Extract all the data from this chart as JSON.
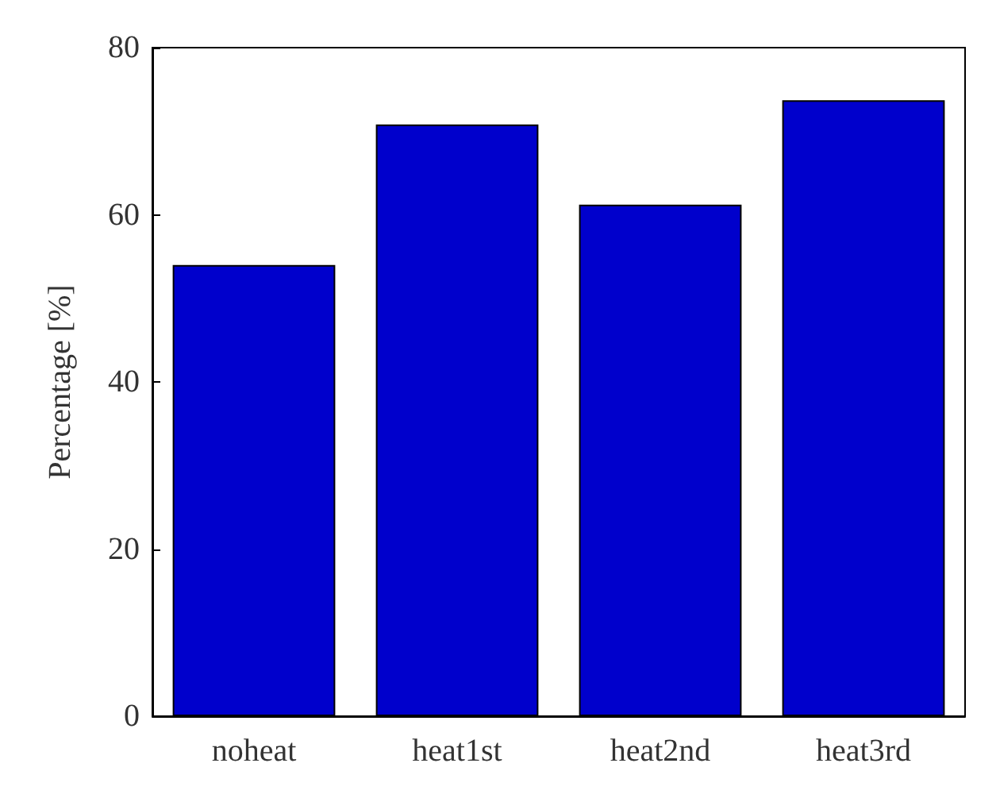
{
  "chart_data": {
    "type": "bar",
    "ylabel": "Percentage [%]",
    "categories": [
      "noheat",
      "heat1st",
      "heat2nd",
      "heat3rd"
    ],
    "values": [
      54,
      70.8,
      61.2,
      73.7
    ],
    "color": "#0000cc",
    "ylim": [
      0,
      80
    ],
    "yticks": [
      0,
      20,
      40,
      60,
      80
    ],
    "grid": false
  }
}
